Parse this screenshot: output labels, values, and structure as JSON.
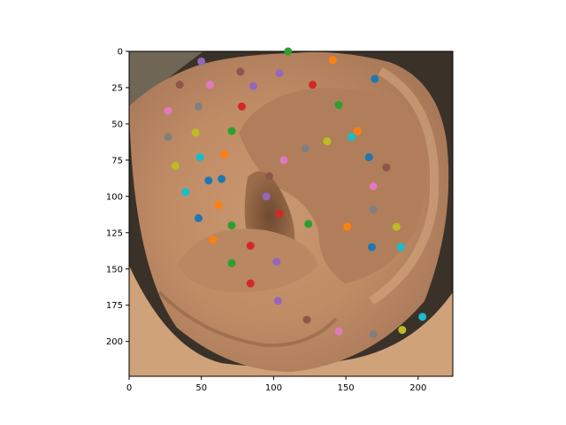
{
  "chart_data": {
    "type": "scatter",
    "title": "",
    "xlabel": "",
    "ylabel": "",
    "xlim": [
      0,
      224
    ],
    "ylim": [
      224,
      0
    ],
    "y_inverted": true,
    "grid": false,
    "legend": "none",
    "background_image": "photo-of-human-ear",
    "xticks": [
      "0",
      "50",
      "100",
      "150",
      "200"
    ],
    "yticks": [
      "0",
      "25",
      "50",
      "75",
      "100",
      "125",
      "150",
      "175",
      "200"
    ],
    "points": [
      {
        "x": 110,
        "y": 0,
        "color": "#2ca02c"
      },
      {
        "x": 50,
        "y": 7,
        "color": "#9467bd"
      },
      {
        "x": 141,
        "y": 6,
        "color": "#ff7f0e"
      },
      {
        "x": 77,
        "y": 14,
        "color": "#8c564b"
      },
      {
        "x": 104,
        "y": 15,
        "color": "#9467bd"
      },
      {
        "x": 35,
        "y": 23,
        "color": "#8c564b"
      },
      {
        "x": 56,
        "y": 23,
        "color": "#e377c2"
      },
      {
        "x": 86,
        "y": 24,
        "color": "#9467bd"
      },
      {
        "x": 127,
        "y": 23,
        "color": "#d62728"
      },
      {
        "x": 170,
        "y": 19,
        "color": "#1f77b4"
      },
      {
        "x": 27,
        "y": 41,
        "color": "#e377c2"
      },
      {
        "x": 48,
        "y": 38,
        "color": "#7f7f7f"
      },
      {
        "x": 78,
        "y": 38,
        "color": "#d62728"
      },
      {
        "x": 145,
        "y": 37,
        "color": "#2ca02c"
      },
      {
        "x": 27,
        "y": 59,
        "color": "#7f7f7f"
      },
      {
        "x": 46,
        "y": 56,
        "color": "#bcbd22"
      },
      {
        "x": 71,
        "y": 55,
        "color": "#2ca02c"
      },
      {
        "x": 137,
        "y": 62,
        "color": "#bcbd22"
      },
      {
        "x": 154,
        "y": 59,
        "color": "#17becf"
      },
      {
        "x": 158,
        "y": 55,
        "color": "#ff7f0e"
      },
      {
        "x": 122,
        "y": 67,
        "color": "#7f7f7f"
      },
      {
        "x": 32,
        "y": 79,
        "color": "#bcbd22"
      },
      {
        "x": 49,
        "y": 73,
        "color": "#17becf"
      },
      {
        "x": 66,
        "y": 71,
        "color": "#ff7f0e"
      },
      {
        "x": 107,
        "y": 75,
        "color": "#e377c2"
      },
      {
        "x": 166,
        "y": 73,
        "color": "#1f77b4"
      },
      {
        "x": 178,
        "y": 80,
        "color": "#8c564b"
      },
      {
        "x": 55,
        "y": 89,
        "color": "#1f77b4"
      },
      {
        "x": 64,
        "y": 88,
        "color": "#1f77b4"
      },
      {
        "x": 97,
        "y": 86,
        "color": "#8c564b"
      },
      {
        "x": 39,
        "y": 97,
        "color": "#17becf"
      },
      {
        "x": 95,
        "y": 100,
        "color": "#9467bd"
      },
      {
        "x": 169,
        "y": 93,
        "color": "#e377c2"
      },
      {
        "x": 62,
        "y": 106,
        "color": "#ff7f0e"
      },
      {
        "x": 104,
        "y": 112,
        "color": "#d62728"
      },
      {
        "x": 169,
        "y": 109,
        "color": "#7f7f7f"
      },
      {
        "x": 48,
        "y": 115,
        "color": "#1f77b4"
      },
      {
        "x": 71,
        "y": 120,
        "color": "#2ca02c"
      },
      {
        "x": 124,
        "y": 119,
        "color": "#2ca02c"
      },
      {
        "x": 151,
        "y": 121,
        "color": "#ff7f0e"
      },
      {
        "x": 185,
        "y": 121,
        "color": "#bcbd22"
      },
      {
        "x": 58,
        "y": 130,
        "color": "#ff7f0e"
      },
      {
        "x": 84,
        "y": 134,
        "color": "#d62728"
      },
      {
        "x": 168,
        "y": 135,
        "color": "#1f77b4"
      },
      {
        "x": 188,
        "y": 135,
        "color": "#17becf"
      },
      {
        "x": 71,
        "y": 146,
        "color": "#2ca02c"
      },
      {
        "x": 102,
        "y": 145,
        "color": "#9467bd"
      },
      {
        "x": 84,
        "y": 160,
        "color": "#d62728"
      },
      {
        "x": 103,
        "y": 172,
        "color": "#9467bd"
      },
      {
        "x": 123,
        "y": 185,
        "color": "#8c564b"
      },
      {
        "x": 145,
        "y": 193,
        "color": "#e377c2"
      },
      {
        "x": 169,
        "y": 195,
        "color": "#7f7f7f"
      },
      {
        "x": 189,
        "y": 192,
        "color": "#bcbd22"
      },
      {
        "x": 203,
        "y": 183,
        "color": "#17becf"
      }
    ]
  }
}
